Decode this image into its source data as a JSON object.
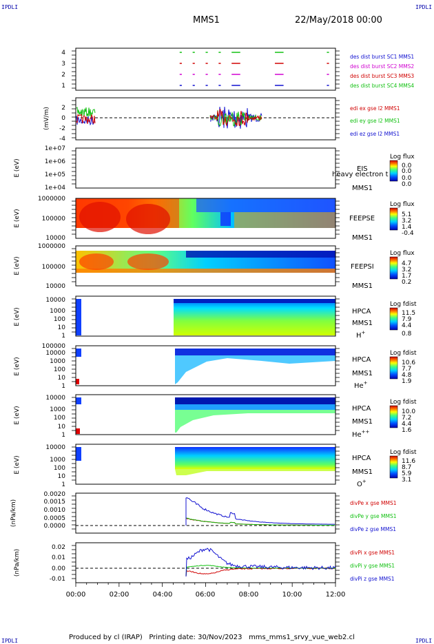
{
  "corner_label": "IPDLI",
  "header": {
    "title": "MMS1",
    "date": "22/May/2018 00:00"
  },
  "footer": {
    "produced_by": "Produced by cl (IRAP)",
    "printing_date": "Printing date: 30/Nov/2023",
    "script_name": "mms_mms1_srvy_vue_web2.cl"
  },
  "time_axis": {
    "ticks": [
      "00:00",
      "02:00",
      "04:00",
      "06:00",
      "08:00",
      "10:00",
      "12:00"
    ],
    "range_hours": [
      0,
      12
    ]
  },
  "colors": {
    "blue": "#1010d0",
    "red": "#d00000",
    "magenta": "#d000d0",
    "green": "#10c010",
    "black": "#000000"
  },
  "chart_data": [
    {
      "type": "timeline",
      "panel": "burst",
      "ylim": [
        0.5,
        4.5
      ],
      "ticks": [
        "4",
        "3",
        "2",
        "1"
      ],
      "legend": [
        "des dist burst SC1 MMS1",
        "des dist burst SC2 MMS2",
        "des dist burst SC3 MMS3",
        "des dist burst SC4 MMS4"
      ],
      "legend_colors": [
        "#1010d0",
        "#d000d0",
        "#d00000",
        "#10c010"
      ],
      "segments": [
        {
          "sc": 4,
          "t": [
            [
              4.8,
              4.9
            ],
            [
              5.4,
              5.5
            ],
            [
              6.0,
              6.1
            ],
            [
              6.6,
              6.7
            ],
            [
              7.2,
              7.6
            ],
            [
              9.2,
              9.6
            ],
            [
              11.6,
              11.7
            ]
          ]
        },
        {
          "sc": 3,
          "t": [
            [
              4.8,
              4.9
            ],
            [
              5.4,
              5.5
            ],
            [
              6.0,
              6.1
            ],
            [
              6.6,
              6.7
            ],
            [
              7.2,
              7.6
            ],
            [
              9.2,
              9.6
            ],
            [
              11.6,
              11.7
            ]
          ]
        },
        {
          "sc": 2,
          "t": [
            [
              4.8,
              4.9
            ],
            [
              5.4,
              5.5
            ],
            [
              6.0,
              6.1
            ],
            [
              6.6,
              6.7
            ],
            [
              7.2,
              7.6
            ],
            [
              9.2,
              9.6
            ],
            [
              11.6,
              11.7
            ]
          ]
        },
        {
          "sc": 1,
          "t": [
            [
              4.8,
              4.9
            ],
            [
              5.4,
              5.5
            ],
            [
              6.0,
              6.1
            ],
            [
              6.6,
              6.7
            ],
            [
              7.2,
              7.6
            ],
            [
              9.2,
              9.6
            ],
            [
              11.6,
              11.7
            ]
          ]
        }
      ]
    },
    {
      "type": "line",
      "panel": "edi",
      "ylabel": "(mV/m)",
      "ylim": [
        -4,
        3
      ],
      "ticks": [
        "2",
        "0",
        "-2",
        "-4"
      ],
      "legend": [
        "edi ex gse l2 MMS1",
        "edi ey gse l2 MMS1",
        "edi ez gse l2 MMS1"
      ],
      "legend_colors": [
        "#d00000",
        "#10c010",
        "#1010d0"
      ]
    },
    {
      "type": "heatmap",
      "panel": "EIS",
      "ylabel": "E (eV)",
      "ticks": [
        "1e+07",
        "1e+06",
        "1e+05",
        "1e+04"
      ],
      "labels": [
        "EIS",
        "MMS1"
      ],
      "overlay_label": "heavy electron t",
      "cbar_title": "Log flux",
      "cbar_ticks": [
        "0.0",
        "0.0",
        "0.0",
        "0.0"
      ]
    },
    {
      "type": "heatmap",
      "panel": "FEEPSE",
      "ylabel": "E (eV)",
      "ticks": [
        "1000000",
        "100000",
        "10000"
      ],
      "labels": [
        "FEEPSE",
        "MMS1"
      ],
      "cbar_title": "Log flux",
      "cbar_ticks": [
        "5.1",
        "3.2",
        "1.4",
        "-0.4"
      ]
    },
    {
      "type": "heatmap",
      "panel": "FEEPSI",
      "ylabel": "E (eV)",
      "ticks": [
        "1000000",
        "100000",
        "10000"
      ],
      "labels": [
        "FEEPSI",
        "MMS1"
      ],
      "cbar_title": "Log flux",
      "cbar_ticks": [
        "4.7",
        "3.2",
        "1.7",
        "0.2"
      ]
    },
    {
      "type": "heatmap",
      "panel": "HPCA H+",
      "ylabel": "E (eV)",
      "ticks": [
        "10000",
        "1000",
        "100",
        "10",
        "1"
      ],
      "labels": [
        "HPCA",
        "MMS1"
      ],
      "species": "H",
      "charge": "+",
      "cbar_title": "Log fdist",
      "cbar_ticks": [
        "11.5",
        "7.9",
        "4.4",
        "0.8"
      ]
    },
    {
      "type": "heatmap",
      "panel": "HPCA He+",
      "ylabel": "E (eV)",
      "ticks": [
        "100000",
        "10000",
        "1000",
        "100",
        "10",
        "1"
      ],
      "labels": [
        "HPCA",
        "MMS1"
      ],
      "species": "He",
      "charge": "+",
      "cbar_title": "Log fdist",
      "cbar_ticks": [
        "10.6",
        "7.7",
        "4.8",
        "1.9"
      ]
    },
    {
      "type": "heatmap",
      "panel": "HPCA He++",
      "ylabel": "E (eV)",
      "ticks": [
        "10000",
        "1000",
        "100",
        "10",
        "1"
      ],
      "labels": [
        "HPCA",
        "MMS1"
      ],
      "species": "He",
      "charge": "++",
      "cbar_title": "Log fdist",
      "cbar_ticks": [
        "10.0",
        "7.2",
        "4.4",
        "1.6"
      ]
    },
    {
      "type": "heatmap",
      "panel": "HPCA O+",
      "ylabel": "E (eV)",
      "ticks": [
        "10000",
        "1000",
        "100",
        "10",
        "1"
      ],
      "labels": [
        "HPCA",
        "MMS1"
      ],
      "species": "O",
      "charge": "+",
      "cbar_title": "Log fdist",
      "cbar_ticks": [
        "11.6",
        "8.7",
        "5.9",
        "3.1"
      ]
    },
    {
      "type": "line",
      "panel": "divPe",
      "ylabel": "(nPa/km)",
      "ylim": [
        -0.0005,
        0.002
      ],
      "ticks": [
        "0.0020",
        "0.0015",
        "0.0010",
        "0.0005",
        "0.0000"
      ],
      "legend": [
        "divPe x gse MMS1",
        "divPe y gse MMS1",
        "divPe z gse MMS1"
      ],
      "legend_colors": [
        "#d00000",
        "#10c010",
        "#1010d0"
      ]
    },
    {
      "type": "line",
      "panel": "divPi",
      "ylabel": "(nPa/km)",
      "ylim": [
        -0.015,
        0.025
      ],
      "ticks": [
        "0.02",
        "0.01",
        "0.00",
        "-0.01"
      ],
      "legend": [
        "divPi x gse MMS1",
        "divPi y gse MMS1",
        "divPi z gse MMS1"
      ],
      "legend_colors": [
        "#d00000",
        "#10c010",
        "#1010d0"
      ]
    }
  ]
}
